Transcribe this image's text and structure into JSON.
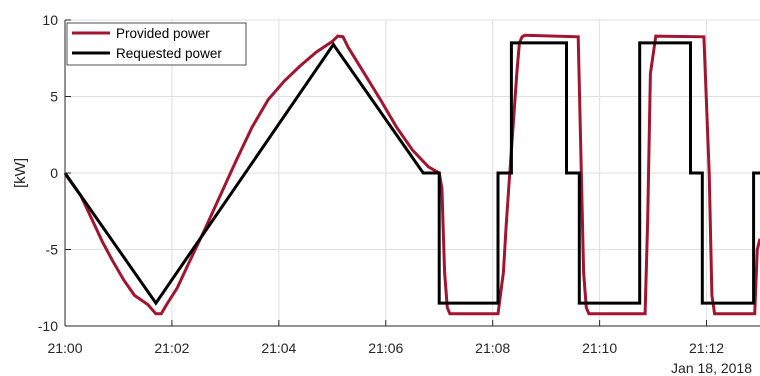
{
  "chart_data": {
    "type": "line",
    "title": "",
    "xlabel": "",
    "ylabel": "[kW]",
    "x_unit": "minutes after 21:00, Jan 18, 2018",
    "date_label": "Jan 18, 2018",
    "xlim": [
      0,
      13
    ],
    "ylim": [
      -10,
      10
    ],
    "grid": true,
    "legend_position": "top-left",
    "x_ticks": [
      {
        "value": 0,
        "label": "21:00"
      },
      {
        "value": 2,
        "label": "21:02"
      },
      {
        "value": 4,
        "label": "21:04"
      },
      {
        "value": 6,
        "label": "21:06"
      },
      {
        "value": 8,
        "label": "21:08"
      },
      {
        "value": 10,
        "label": "21:10"
      },
      {
        "value": 12,
        "label": "21:12"
      }
    ],
    "y_ticks": [
      {
        "value": 10,
        "label": "10"
      },
      {
        "value": 5,
        "label": "5"
      },
      {
        "value": 0,
        "label": "0"
      },
      {
        "value": -5,
        "label": "-5"
      },
      {
        "value": -10,
        "label": "-10"
      }
    ],
    "series": [
      {
        "name": "Provided power",
        "color": "#a2142f",
        "x": [
          0,
          0.05,
          0.3,
          0.5,
          0.7,
          0.9,
          1.1,
          1.3,
          1.55,
          1.7,
          1.8,
          1.9,
          2.1,
          2.3,
          2.6,
          2.9,
          3.2,
          3.5,
          3.8,
          4.1,
          4.4,
          4.7,
          5.0,
          5.1,
          5.2,
          5.3,
          5.6,
          5.9,
          6.2,
          6.5,
          6.8,
          7.0,
          7.05,
          7.1,
          7.15,
          7.2,
          8.1,
          8.2,
          8.25,
          8.3,
          8.45,
          8.5,
          8.55,
          8.6,
          9.6,
          9.7,
          9.75,
          9.8,
          10.85,
          10.9,
          10.95,
          11.05,
          11.95,
          12.05,
          12.1,
          12.15,
          12.9,
          12.95,
          13.0
        ],
        "y": [
          0,
          -0.3,
          -1.5,
          -3.0,
          -4.5,
          -5.8,
          -7.0,
          -8.0,
          -8.6,
          -9.2,
          -9.2,
          -8.6,
          -7.5,
          -6.0,
          -3.8,
          -1.5,
          0.8,
          3.0,
          4.8,
          6.0,
          7.0,
          7.9,
          8.6,
          8.95,
          8.9,
          8.2,
          6.5,
          4.8,
          3.0,
          1.5,
          0.4,
          0.0,
          -1.0,
          -6.5,
          -8.8,
          -9.2,
          -9.2,
          -6.5,
          -3.5,
          -1.0,
          6.5,
          8.5,
          8.9,
          9.0,
          8.9,
          -6.5,
          -8.8,
          -9.2,
          -9.2,
          -3.0,
          6.5,
          8.95,
          8.9,
          0.0,
          -8.0,
          -9.2,
          -9.2,
          -5.0,
          -4.3
        ]
      },
      {
        "name": "Requested power",
        "color": "#000000",
        "x": [
          0,
          1.7,
          5.02,
          6.7,
          7.0,
          7.0,
          8.1,
          8.1,
          8.35,
          8.35,
          9.38,
          9.38,
          9.62,
          9.62,
          10.75,
          10.75,
          11.7,
          11.7,
          11.92,
          11.92,
          12.88,
          12.88,
          13.0
        ],
        "y": [
          0,
          -8.5,
          8.4,
          0.0,
          0.0,
          -8.5,
          -8.5,
          0.0,
          0.0,
          8.5,
          8.5,
          0.0,
          0.0,
          -8.5,
          -8.5,
          8.5,
          8.5,
          0.0,
          0.0,
          -8.5,
          -8.5,
          0.0,
          0.0
        ]
      }
    ]
  }
}
